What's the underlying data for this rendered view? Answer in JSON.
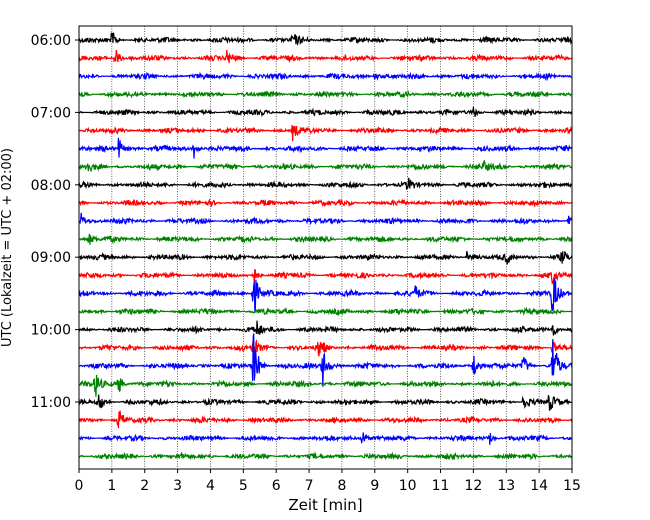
{
  "chart_data": {
    "type": "line",
    "title": "",
    "xlabel": "Zeit  [min]",
    "ylabel": "UTC (Lokalzeit = UTC + 02:00)",
    "xlim": [
      0,
      15
    ],
    "x_ticks": [
      "0",
      "1",
      "2",
      "3",
      "4",
      "5",
      "6",
      "7",
      "8",
      "9",
      "10",
      "11",
      "12",
      "13",
      "14",
      "15"
    ],
    "y_ticks": [
      {
        "label": "06:00",
        "trace": 0
      },
      {
        "label": "07:00",
        "trace": 4
      },
      {
        "label": "08:00",
        "trace": 8
      },
      {
        "label": "09:00",
        "trace": 12
      },
      {
        "label": "10:00",
        "trace": 16
      },
      {
        "label": "11:00",
        "trace": 20
      }
    ],
    "grid": "vertical dotted at every minute",
    "trace_interval_minutes": 15,
    "color_cycle": [
      "#000000",
      "#ff0000",
      "#0000ff",
      "#008000"
    ],
    "traces": [
      {
        "start": "06:00",
        "color": "#000000",
        "events": [
          {
            "t": 1.0,
            "amp": 0.7
          },
          {
            "t": 6.5,
            "amp": 0.5
          }
        ]
      },
      {
        "start": "06:15",
        "color": "#ff0000",
        "events": [
          {
            "t": 1.1,
            "amp": 1.0
          },
          {
            "t": 4.5,
            "amp": 0.6
          }
        ]
      },
      {
        "start": "06:30",
        "color": "#0000ff",
        "events": [
          {
            "t": 9.0,
            "amp": 0.4
          }
        ]
      },
      {
        "start": "06:45",
        "color": "#008000",
        "events": []
      },
      {
        "start": "07:00",
        "color": "#000000",
        "events": [
          {
            "t": 12.0,
            "amp": 0.4
          }
        ]
      },
      {
        "start": "07:15",
        "color": "#ff0000",
        "events": [
          {
            "t": 6.5,
            "amp": 0.8
          }
        ]
      },
      {
        "start": "07:30",
        "color": "#0000ff",
        "events": [
          {
            "t": 1.2,
            "amp": 1.0
          },
          {
            "t": 3.5,
            "amp": 0.9
          }
        ]
      },
      {
        "start": "07:45",
        "color": "#008000",
        "events": [
          {
            "t": 0.2,
            "amp": 0.6
          },
          {
            "t": 12.3,
            "amp": 0.5
          }
        ]
      },
      {
        "start": "08:00",
        "color": "#000000",
        "events": [
          {
            "t": 10.0,
            "amp": 0.5
          }
        ]
      },
      {
        "start": "08:15",
        "color": "#ff0000",
        "events": []
      },
      {
        "start": "08:30",
        "color": "#0000ff",
        "events": [
          {
            "t": 0.05,
            "amp": 0.8
          },
          {
            "t": 14.9,
            "amp": 0.7
          }
        ]
      },
      {
        "start": "08:45",
        "color": "#008000",
        "events": [
          {
            "t": 0.3,
            "amp": 0.5
          }
        ]
      },
      {
        "start": "09:00",
        "color": "#000000",
        "events": [
          {
            "t": 11.8,
            "amp": 0.5
          },
          {
            "t": 13.0,
            "amp": 0.5
          },
          {
            "t": 14.7,
            "amp": 0.5
          }
        ]
      },
      {
        "start": "09:15",
        "color": "#ff0000",
        "events": [
          {
            "t": 5.3,
            "amp": 0.8
          },
          {
            "t": 14.4,
            "amp": 0.6
          }
        ]
      },
      {
        "start": "09:30",
        "color": "#0000ff",
        "events": [
          {
            "t": 5.3,
            "amp": 2.5
          },
          {
            "t": 10.2,
            "amp": 0.8
          },
          {
            "t": 14.4,
            "amp": 2.5
          }
        ]
      },
      {
        "start": "09:45",
        "color": "#008000",
        "events": []
      },
      {
        "start": "10:00",
        "color": "#000000",
        "events": [
          {
            "t": 5.4,
            "amp": 0.8
          },
          {
            "t": 14.4,
            "amp": 0.8
          }
        ]
      },
      {
        "start": "10:15",
        "color": "#ff0000",
        "events": [
          {
            "t": 5.3,
            "amp": 1.0
          },
          {
            "t": 7.3,
            "amp": 1.0
          },
          {
            "t": 14.4,
            "amp": 1.0
          }
        ]
      },
      {
        "start": "10:30",
        "color": "#0000ff",
        "events": [
          {
            "t": 5.3,
            "amp": 3.0
          },
          {
            "t": 7.4,
            "amp": 2.0
          },
          {
            "t": 12.0,
            "amp": 1.2
          },
          {
            "t": 13.5,
            "amp": 1.0
          },
          {
            "t": 14.4,
            "amp": 3.0
          }
        ]
      },
      {
        "start": "10:45",
        "color": "#008000",
        "events": [
          {
            "t": 0.5,
            "amp": 1.2
          },
          {
            "t": 1.2,
            "amp": 0.9
          }
        ]
      },
      {
        "start": "11:00",
        "color": "#000000",
        "events": [
          {
            "t": 0.6,
            "amp": 0.8
          },
          {
            "t": 13.5,
            "amp": 0.9
          },
          {
            "t": 14.3,
            "amp": 0.9
          }
        ]
      },
      {
        "start": "11:15",
        "color": "#ff0000",
        "events": [
          {
            "t": 1.2,
            "amp": 1.0
          }
        ]
      },
      {
        "start": "11:30",
        "color": "#0000ff",
        "events": [
          {
            "t": 8.6,
            "amp": 0.8
          },
          {
            "t": 12.5,
            "amp": 0.5
          }
        ]
      },
      {
        "start": "11:45",
        "color": "#008000",
        "events": []
      }
    ]
  }
}
